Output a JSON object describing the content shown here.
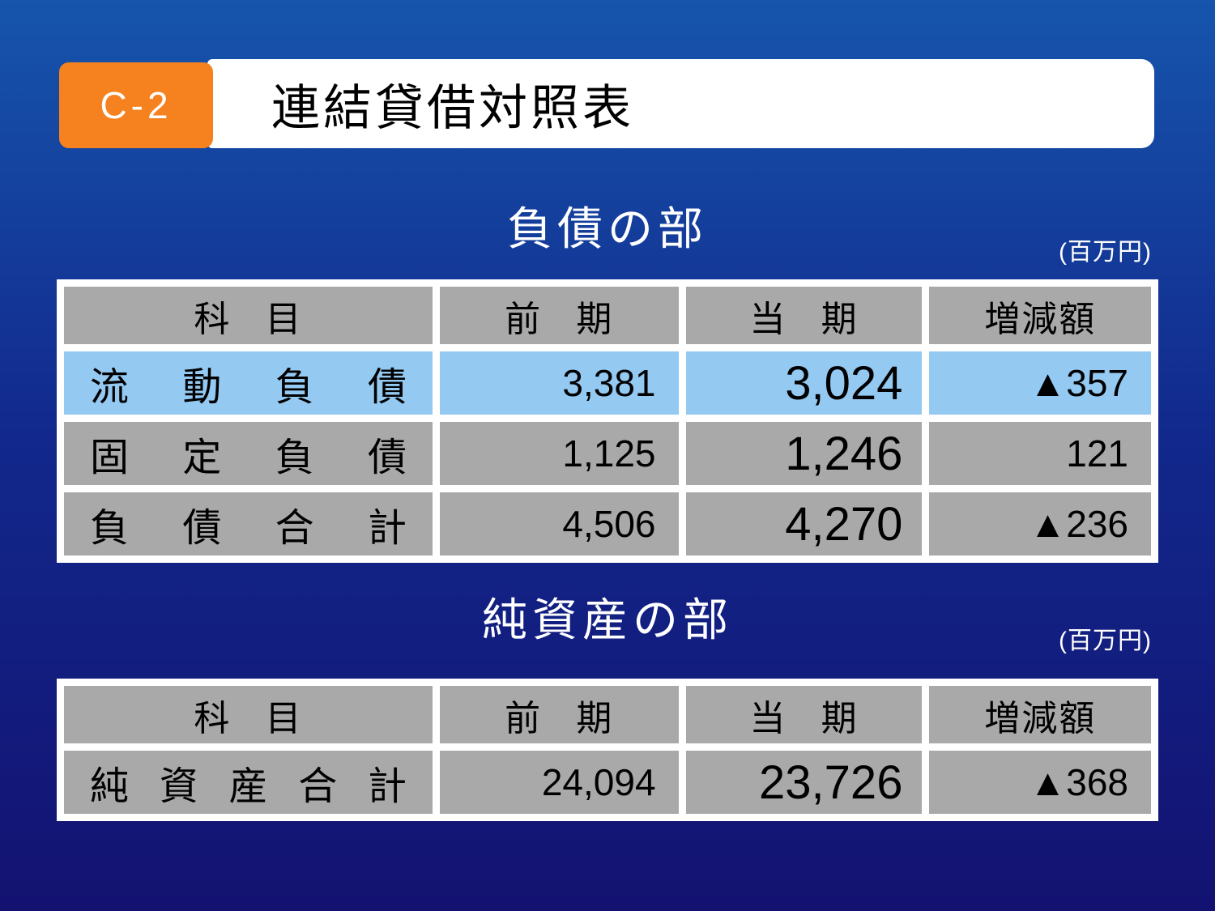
{
  "header": {
    "badge": "C-2",
    "title": "連結貸借対照表"
  },
  "liabilities": {
    "heading": "負債の部",
    "unit": "(百万円)",
    "columns": {
      "account": "科 目",
      "prev": "前 期",
      "current": "当 期",
      "change": "増減額"
    },
    "rows": [
      {
        "label": "流動負債",
        "prev": "3,381",
        "current": "3,024",
        "change": "▲357",
        "highlight": true
      },
      {
        "label": "固定負債",
        "prev": "1,125",
        "current": "1,246",
        "change": "121",
        "highlight": false
      },
      {
        "label": "負債合計",
        "prev": "4,506",
        "current": "4,270",
        "change": "▲236",
        "highlight": false
      }
    ]
  },
  "net_assets": {
    "heading": "純資産の部",
    "unit": "(百万円)",
    "columns": {
      "account": "科 目",
      "prev": "前 期",
      "current": "当 期",
      "change": "増減額"
    },
    "rows": [
      {
        "label": "純資産合計",
        "prev": "24,094",
        "current": "23,726",
        "change": "▲368",
        "highlight": false
      }
    ]
  },
  "colors": {
    "accent_orange": "#f5821f",
    "cell_gray": "#a9a9a9",
    "highlight_blue": "#94c9f2",
    "bg_top": "#1655ac",
    "bg_mid": "#12288c",
    "bg_bottom": "#131271"
  }
}
